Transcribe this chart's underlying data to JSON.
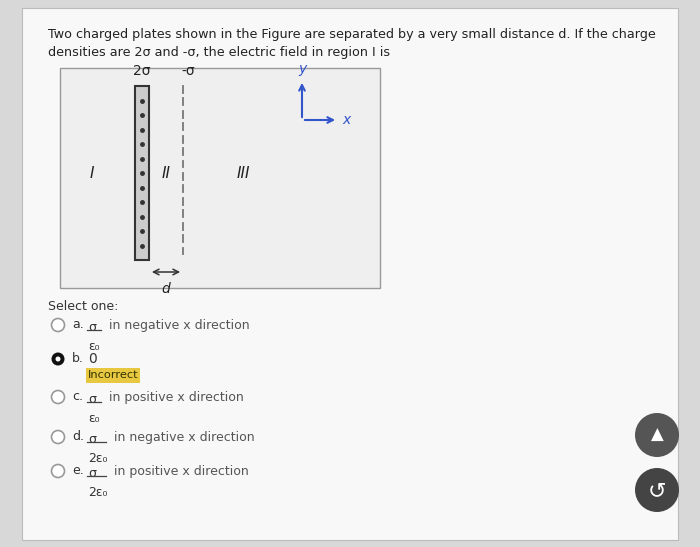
{
  "bg_color": "#d8d8d8",
  "card_bg": "#f8f8f8",
  "title_text1": "Two charged plates shown in the Figure are separated by a very small distance d. If the charge",
  "title_text2": "densities are 2σ and -σ, the electric field in region I is",
  "plate1_label": "2σ",
  "plate2_label": "-σ",
  "region_I": "I",
  "region_II": "II",
  "region_III": "III",
  "d_label": "d",
  "select_one": "Select one:",
  "options": [
    {
      "letter": "a.",
      "formula_num": "σ",
      "formula_den": "ε₀",
      "extra": "in negative x direction",
      "selected": false,
      "incorrect": false
    },
    {
      "letter": "b.",
      "formula_num": "0",
      "formula_den": null,
      "extra": "",
      "selected": true,
      "incorrect": true
    },
    {
      "letter": "c.",
      "formula_num": "σ",
      "formula_den": "ε₀",
      "extra": "in positive x direction",
      "selected": false,
      "incorrect": false
    },
    {
      "letter": "d.",
      "formula_num": "σ",
      "formula_den": "2ε₀",
      "extra": "in negative x direction",
      "selected": false,
      "incorrect": false
    },
    {
      "letter": "e.",
      "formula_num": "σ",
      "formula_den": "2ε₀",
      "extra": "in positive x direction",
      "selected": false,
      "incorrect": false
    }
  ],
  "incorrect_label": "Incorrect",
  "incorrect_bg": "#e8c840",
  "text_color": "#222222",
  "diagram_bg": "#efefef",
  "nav_btn_color": "#555555"
}
